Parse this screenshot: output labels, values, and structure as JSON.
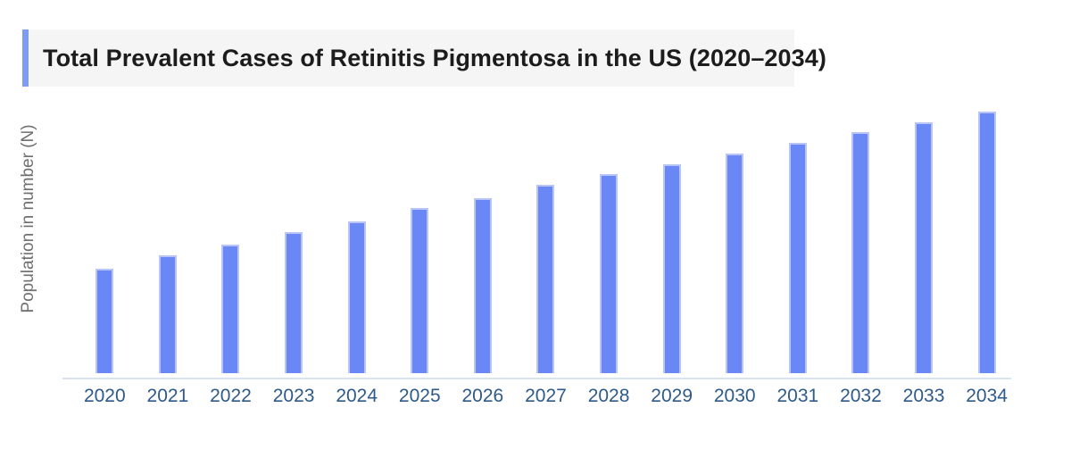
{
  "title": {
    "text": "Total Prevalent Cases of Retinitis Pigmentosa in the US (2020–2034)",
    "accent_color": "#7e9cf0",
    "background": "#f5f5f6",
    "text_color": "#1c1c1c"
  },
  "chart_data": {
    "type": "bar",
    "title": "Total Prevalent Cases of Retinitis Pigmentosa in the US (2020–2034)",
    "xlabel": "",
    "ylabel": "Population in number (N)",
    "categories": [
      "2020",
      "2021",
      "2022",
      "2023",
      "2024",
      "2025",
      "2026",
      "2027",
      "2028",
      "2029",
      "2030",
      "2031",
      "2032",
      "2033",
      "2034"
    ],
    "values": [
      0.4,
      0.45,
      0.49,
      0.54,
      0.58,
      0.63,
      0.67,
      0.72,
      0.76,
      0.8,
      0.84,
      0.88,
      0.92,
      0.96,
      1.0
    ],
    "values_note": "Relative bar heights normalized to 2034 = 1.00; no numeric y-axis tick values are shown in the chart",
    "ylim": [
      0,
      1.05
    ],
    "grid": false,
    "legend_position": "none",
    "bar_color": "#6a88f5",
    "bar_border_color": "#b9c4f7",
    "axis_line_color": "#d8e3ef",
    "tick_label_color": "#2e5a8a",
    "axis_label_color": "#6f6f6f"
  }
}
